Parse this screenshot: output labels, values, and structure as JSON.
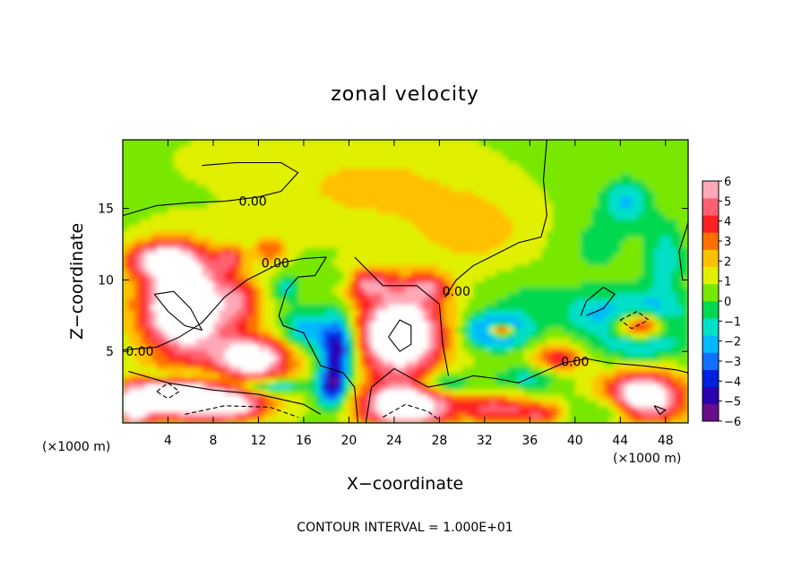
{
  "chart_data": {
    "type": "heatmap",
    "title": "zonal velocity",
    "xlabel": "X−coordinate",
    "ylabel": "Z−coordinate",
    "x_unit_left": "(×1000 m)",
    "x_unit_right": "(×1000 m)",
    "xlim": [
      0,
      50
    ],
    "ylim": [
      0,
      19.8
    ],
    "xticks": [
      4,
      8,
      12,
      16,
      20,
      24,
      28,
      32,
      36,
      40,
      44,
      48
    ],
    "xtick_labels": [
      "4",
      "8",
      "12",
      "16",
      "20",
      "24",
      "28",
      "32",
      "36",
      "40",
      "44",
      "48"
    ],
    "yticks": [
      5,
      10,
      15
    ],
    "ytick_labels": [
      "5",
      "10",
      "15"
    ],
    "colorbar": {
      "min": -6,
      "max": 6,
      "ticks": [
        6,
        5,
        4,
        3,
        2,
        1,
        0,
        -1,
        -2,
        -3,
        -4,
        -5,
        -6
      ],
      "tick_labels": [
        "6",
        "5",
        "4",
        "3",
        "2",
        "1",
        "0",
        "−1",
        "−2",
        "−3",
        "−4",
        "−5",
        "−6"
      ],
      "colors": [
        "#6a0d8a",
        "#2a00b0",
        "#0020e0",
        "#1070ff",
        "#00b8ff",
        "#00e0c8",
        "#00d850",
        "#78e800",
        "#e0f000",
        "#ffc000",
        "#ff7000",
        "#ff2020",
        "#ff6070",
        "#ffa8b8"
      ]
    },
    "contour_labels": [
      {
        "text": "0.00",
        "x": 11.5,
        "y": 15.5
      },
      {
        "text": "0.00",
        "x": 13.5,
        "y": 11.2
      },
      {
        "text": "0.00",
        "x": 29.5,
        "y": 9.2
      },
      {
        "text": "0.00",
        "x": 1.5,
        "y": 5.0
      },
      {
        "text": "0.00",
        "x": 40.0,
        "y": 4.3
      }
    ],
    "features": [
      {
        "x": 5.5,
        "y": 8.2,
        "rx": 3.8,
        "ry": 3.3,
        "v": 9
      },
      {
        "x": 11.5,
        "y": 4.5,
        "rx": 3.5,
        "ry": 1.6,
        "v": 7
      },
      {
        "x": 3.5,
        "y": 11.5,
        "rx": 3.2,
        "ry": 1.2,
        "v": 5
      },
      {
        "x": 4.5,
        "y": 2.0,
        "rx": 3.8,
        "ry": 1.6,
        "v": 8
      },
      {
        "x": 9.5,
        "y": 1.3,
        "rx": 3.5,
        "ry": 1.1,
        "v": 6
      },
      {
        "x": 0.8,
        "y": 1.0,
        "rx": 1.6,
        "ry": 1.8,
        "v": 5
      },
      {
        "x": 24.5,
        "y": 6.2,
        "rx": 3.6,
        "ry": 2.8,
        "v": 9
      },
      {
        "x": 25.0,
        "y": 1.2,
        "rx": 4.0,
        "ry": 1.5,
        "v": 8
      },
      {
        "x": 21.5,
        "y": 9.8,
        "rx": 2.5,
        "ry": 1.1,
        "v": 4
      },
      {
        "x": 27.0,
        "y": 9.5,
        "rx": 2.0,
        "ry": 1.0,
        "v": 3.5
      },
      {
        "x": 10.5,
        "y": 8.5,
        "rx": 1.8,
        "ry": 1.6,
        "v": 3
      },
      {
        "x": 9.5,
        "y": 11.5,
        "rx": 1.2,
        "ry": 0.9,
        "v": 3
      },
      {
        "x": 13.0,
        "y": 12.2,
        "rx": 1.5,
        "ry": 1.0,
        "v": 2.5
      },
      {
        "x": 38.5,
        "y": 4.5,
        "rx": 2.2,
        "ry": 1.0,
        "v": 3.5
      },
      {
        "x": 46.0,
        "y": 1.8,
        "rx": 3.5,
        "ry": 1.7,
        "v": 8
      },
      {
        "x": 33.0,
        "y": 1.0,
        "rx": 3.0,
        "ry": 1.0,
        "v": 4
      },
      {
        "x": 37.0,
        "y": 0.7,
        "rx": 2.0,
        "ry": 0.8,
        "v": 3
      },
      {
        "x": 19.0,
        "y": 5.3,
        "rx": 1.5,
        "ry": 2.3,
        "v": -6
      },
      {
        "x": 18.5,
        "y": 2.5,
        "rx": 1.2,
        "ry": 1.4,
        "v": -5
      },
      {
        "x": 16.0,
        "y": 6.5,
        "rx": 2.0,
        "ry": 1.5,
        "v": -3
      },
      {
        "x": 19.5,
        "y": 10.0,
        "rx": 1.3,
        "ry": 0.8,
        "v": -2
      },
      {
        "x": 14.5,
        "y": 9.5,
        "rx": 1.0,
        "ry": 0.8,
        "v": -2.5
      },
      {
        "x": 33.2,
        "y": 6.5,
        "rx": 2.5,
        "ry": 1.1,
        "v": -6
      },
      {
        "x": 33.5,
        "y": 6.5,
        "rx": 1.2,
        "ry": 0.5,
        "v": 9
      },
      {
        "x": 45.8,
        "y": 6.8,
        "rx": 3.6,
        "ry": 1.9,
        "v": -6
      },
      {
        "x": 45.8,
        "y": 6.8,
        "rx": 2.4,
        "ry": 1.0,
        "v": 9
      },
      {
        "x": 5.0,
        "y": 3.3,
        "rx": 4.2,
        "ry": 0.7,
        "v": -4
      },
      {
        "x": 13.0,
        "y": 2.6,
        "rx": 3.0,
        "ry": 0.5,
        "v": -3.5
      },
      {
        "x": 28.5,
        "y": 2.8,
        "rx": 2.2,
        "ry": 0.7,
        "v": -3
      },
      {
        "x": 36.0,
        "y": 3.2,
        "rx": 3.0,
        "ry": 0.8,
        "v": -2
      },
      {
        "x": 43.5,
        "y": 1.0,
        "rx": 3.0,
        "ry": 1.0,
        "v": -3
      },
      {
        "x": 41.0,
        "y": 7.8,
        "rx": 2.5,
        "ry": 1.5,
        "v": -1.5
      },
      {
        "x": 36.0,
        "y": 8.5,
        "rx": 3.5,
        "ry": 1.8,
        "v": -1
      },
      {
        "x": 44.5,
        "y": 15.5,
        "rx": 2.0,
        "ry": 1.6,
        "v": -2.5
      },
      {
        "x": 48.0,
        "y": 11.5,
        "rx": 1.8,
        "ry": 2.8,
        "v": -2
      },
      {
        "x": 42.0,
        "y": 12.5,
        "rx": 3.0,
        "ry": 2.5,
        "v": -1
      },
      {
        "x": 22.0,
        "y": 16.5,
        "rx": 9.0,
        "ry": 3.0,
        "v": 1.3
      },
      {
        "x": 31.0,
        "y": 13.5,
        "rx": 5.0,
        "ry": 2.5,
        "v": 1.5
      },
      {
        "x": 8.0,
        "y": 18.5,
        "rx": 4.0,
        "ry": 1.5,
        "v": 0.3
      }
    ],
    "contours": [
      {
        "style": "solid",
        "points": [
          [
            0,
            14.5
          ],
          [
            3,
            15.2
          ],
          [
            6,
            15.4
          ],
          [
            9,
            15.5
          ],
          [
            12,
            15.8
          ],
          [
            14,
            16.2
          ],
          [
            15.5,
            17.5
          ],
          [
            14,
            18.2
          ],
          [
            10,
            18.2
          ],
          [
            7,
            18.0
          ]
        ]
      },
      {
        "style": "solid",
        "points": [
          [
            0,
            5.1
          ],
          [
            3,
            5.3
          ],
          [
            5,
            6.0
          ],
          [
            7,
            7.0
          ],
          [
            9,
            8.8
          ],
          [
            11,
            10.0
          ],
          [
            12.5,
            10.6
          ],
          [
            14,
            11.2
          ],
          [
            16,
            11.5
          ],
          [
            18,
            11.6
          ]
        ]
      },
      {
        "style": "solid",
        "points": [
          [
            18,
            11.6
          ],
          [
            17,
            10.3
          ],
          [
            15.5,
            10.2
          ],
          [
            14.5,
            9.3
          ],
          [
            13.8,
            7.5
          ],
          [
            14.2,
            6.8
          ],
          [
            16,
            6.3
          ],
          [
            17.5,
            4.0
          ],
          [
            19.5,
            3.5
          ],
          [
            20.5,
            2.5
          ],
          [
            20.8,
            0
          ]
        ]
      },
      {
        "style": "solid",
        "points": [
          [
            0.5,
            3.6
          ],
          [
            4,
            2.8
          ],
          [
            8,
            2.3
          ],
          [
            12,
            2.0
          ],
          [
            16,
            1.3
          ],
          [
            17.5,
            0.6
          ]
        ]
      },
      {
        "style": "solid",
        "points": [
          [
            21.5,
            0
          ],
          [
            22,
            2.5
          ],
          [
            24,
            3.8
          ],
          [
            27,
            2.5
          ],
          [
            29,
            2.8
          ],
          [
            31,
            3.3
          ],
          [
            33,
            3.1
          ],
          [
            35,
            2.8
          ],
          [
            37,
            3.5
          ],
          [
            39,
            4.2
          ],
          [
            41,
            4.5
          ],
          [
            43,
            4.2
          ],
          [
            46,
            4.0
          ],
          [
            49,
            3.7
          ],
          [
            50,
            3.5
          ]
        ]
      },
      {
        "style": "solid",
        "points": [
          [
            20.5,
            11.6
          ],
          [
            21.5,
            10.8
          ],
          [
            23,
            9.6
          ],
          [
            26,
            9.6
          ],
          [
            28,
            8.3
          ],
          [
            28.3,
            5.5
          ],
          [
            28.8,
            3.3
          ]
        ]
      },
      {
        "style": "solid",
        "points": [
          [
            28.5,
            8.8
          ],
          [
            29.5,
            10.0
          ],
          [
            31,
            11.0
          ],
          [
            33,
            11.8
          ],
          [
            35,
            12.6
          ],
          [
            37,
            13.0
          ],
          [
            37.5,
            14.5
          ],
          [
            37.2,
            17.0
          ],
          [
            37.5,
            19.8
          ]
        ]
      },
      {
        "style": "solid",
        "points": [
          [
            41,
            7.5
          ],
          [
            42.5,
            8.0
          ],
          [
            43.5,
            9.0
          ],
          [
            42.5,
            9.5
          ],
          [
            41,
            8.5
          ],
          [
            40.5,
            7.5
          ]
        ]
      },
      {
        "style": "solid",
        "points": [
          [
            49.5,
            10.0
          ],
          [
            49.2,
            12.0
          ],
          [
            50,
            14.0
          ]
        ]
      },
      {
        "style": "solid",
        "points": [
          [
            2.8,
            9.0
          ],
          [
            4.5,
            9.2
          ],
          [
            6,
            8.0
          ],
          [
            7,
            6.5
          ],
          [
            5.5,
            6.8
          ],
          [
            4,
            7.8
          ],
          [
            2.8,
            9.0
          ]
        ]
      },
      {
        "style": "solid",
        "points": [
          [
            23.5,
            6.0
          ],
          [
            24.5,
            7.2
          ],
          [
            25.5,
            6.8
          ],
          [
            25.5,
            5.5
          ],
          [
            24.5,
            5.0
          ],
          [
            23.5,
            6.0
          ]
        ]
      },
      {
        "style": "dashed",
        "points": [
          [
            3.0,
            2.2
          ],
          [
            4.0,
            2.8
          ],
          [
            5.0,
            2.2
          ],
          [
            4.0,
            1.7
          ],
          [
            3.0,
            2.2
          ]
        ]
      },
      {
        "style": "dashed",
        "points": [
          [
            5.5,
            0.6
          ],
          [
            9,
            1.2
          ],
          [
            13,
            1.1
          ],
          [
            15.5,
            0.4
          ]
        ]
      },
      {
        "style": "dashed",
        "points": [
          [
            23,
            0.4
          ],
          [
            25,
            1.3
          ],
          [
            27,
            0.8
          ],
          [
            28,
            0.2
          ]
        ]
      },
      {
        "style": "dashed",
        "points": [
          [
            44,
            7.2
          ],
          [
            45.5,
            7.8
          ],
          [
            46.5,
            7.2
          ],
          [
            45,
            6.6
          ],
          [
            44,
            7.2
          ]
        ]
      },
      {
        "style": "solid",
        "points": [
          [
            47,
            1.2
          ],
          [
            48,
            0.9
          ],
          [
            47.5,
            0.6
          ],
          [
            47,
            1.2
          ]
        ]
      }
    ],
    "note": "CONTOUR INTERVAL = 1.000E+01"
  }
}
